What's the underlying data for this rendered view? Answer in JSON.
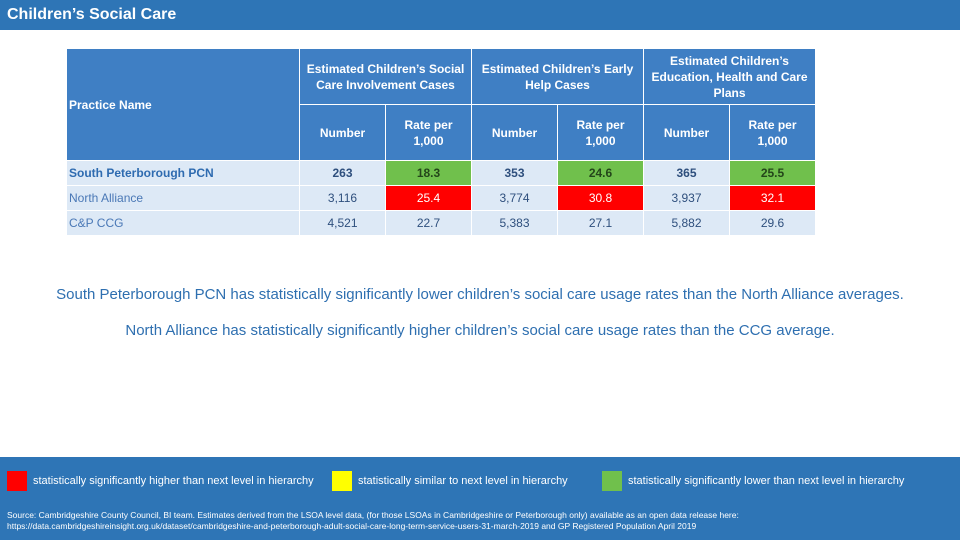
{
  "header": {
    "title": "Children’s Social Care"
  },
  "table": {
    "practice_header": "Practice Name",
    "groups": [
      "Estimated Children’s Social Care Involvement Cases",
      "Estimated Children’s Early Help Cases",
      "Estimated Children’s Education, Health and Care Plans"
    ],
    "sub_headers": [
      "Number",
      "Rate per 1,000",
      "Number",
      "Rate per 1,000",
      "Number",
      "Rate per 1,000"
    ],
    "rows": [
      {
        "name": "South Peterborough PCN",
        "cells": [
          "263",
          "18.3",
          "353",
          "24.6",
          "365",
          "25.5"
        ]
      },
      {
        "name": "North Alliance",
        "cells": [
          "3,116",
          "25.4",
          "3,774",
          "30.8",
          "3,937",
          "32.1"
        ]
      },
      {
        "name": "C&P CCG",
        "cells": [
          "4,521",
          "22.7",
          "5,383",
          "27.1",
          "5,882",
          "29.6"
        ]
      }
    ],
    "highlight_colors": {
      "lower": "#70c04c",
      "higher": "#ff0000"
    }
  },
  "statements": [
    "South Peterborough PCN has statistically significantly lower children’s social care usage rates than the North Alliance averages.",
    "North Alliance has statistically significantly higher children’s social care usage rates than the CCG average."
  ],
  "legend": [
    {
      "color": "#ff0000",
      "label": "statistically significantly higher than next level in hierarchy"
    },
    {
      "color": "#ffff00",
      "label": "statistically similar to next level in hierarchy"
    },
    {
      "color": "#70c04c",
      "label": "statistically significantly lower than next level in hierarchy"
    }
  ],
  "source": {
    "line1": "Source: Cambridgeshire County Council, BI team. Estimates derived from the LSOA level data, (for those LSOAs in Cambridgeshire or Peterborough only) available as an open data release here:",
    "line2": "https://data.cambridgeshireinsight.org.uk/dataset/cambridgeshire-and-peterborough-adult-social-care-long-term-service-users-31-march-2019 and GP Registered Population April 2019"
  }
}
